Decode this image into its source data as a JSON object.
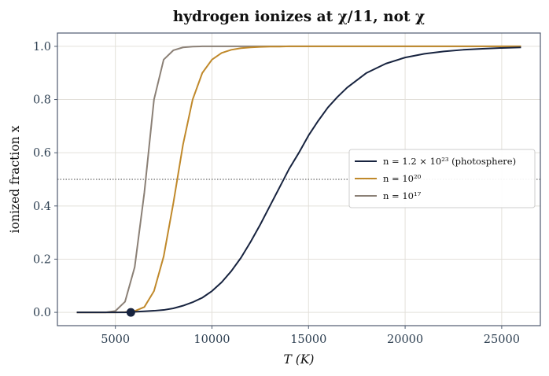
{
  "chart_data": {
    "type": "line",
    "title": "hydrogen ionizes at χ/11, not χ",
    "xlabel": "T (K)",
    "ylabel": "ionized fraction x",
    "xlim": [
      2000,
      27000
    ],
    "ylim": [
      -0.05,
      1.05
    ],
    "xticks": [
      5000,
      10000,
      15000,
      20000,
      25000
    ],
    "yticks": [
      0.0,
      0.2,
      0.4,
      0.6,
      0.8,
      1.0
    ],
    "grid": true,
    "legend_position": "center-right",
    "reference_line": {
      "y": 0.5,
      "style": "dotted",
      "color": "#444444"
    },
    "marker": {
      "x": 5800,
      "y": 0.0,
      "color": "#17233f"
    },
    "x": [
      3000,
      3500,
      4000,
      4500,
      5000,
      5500,
      6000,
      6500,
      7000,
      7500,
      8000,
      8500,
      9000,
      9500,
      10000,
      10500,
      11000,
      11500,
      12000,
      12500,
      13000,
      13500,
      14000,
      14500,
      15000,
      15500,
      16000,
      16500,
      17000,
      18000,
      19000,
      20000,
      21000,
      22000,
      23000,
      24000,
      25000,
      26000
    ],
    "series": [
      {
        "name": "n = 1.2 × 10²³ (photosphere)",
        "color": "#17233f",
        "values": [
          0.0,
          0.0,
          0.0,
          0.0,
          0.0,
          0.0,
          0.002,
          0.004,
          0.006,
          0.009,
          0.015,
          0.025,
          0.038,
          0.055,
          0.08,
          0.113,
          0.155,
          0.205,
          0.265,
          0.33,
          0.4,
          0.47,
          0.54,
          0.6,
          0.665,
          0.72,
          0.77,
          0.81,
          0.845,
          0.9,
          0.935,
          0.958,
          0.972,
          0.981,
          0.987,
          0.991,
          0.994,
          0.996
        ]
      },
      {
        "name": "n = 10²⁰",
        "color": "#c0892b",
        "values": [
          0.0,
          0.0,
          0.0,
          0.0,
          0.0,
          0.001,
          0.005,
          0.02,
          0.08,
          0.21,
          0.41,
          0.63,
          0.8,
          0.9,
          0.95,
          0.975,
          0.987,
          0.993,
          0.996,
          0.998,
          0.999,
          0.999,
          1.0,
          1.0,
          1.0,
          1.0,
          1.0,
          1.0,
          1.0,
          1.0,
          1.0,
          1.0,
          1.0,
          1.0,
          1.0,
          1.0,
          1.0,
          1.0
        ]
      },
      {
        "name": "n = 10¹⁷",
        "color": "#8b8076",
        "values": [
          0.0,
          0.0,
          0.0,
          0.0,
          0.005,
          0.04,
          0.17,
          0.45,
          0.8,
          0.95,
          0.985,
          0.996,
          0.999,
          1.0,
          1.0,
          1.0,
          1.0,
          1.0,
          1.0,
          1.0,
          1.0,
          1.0,
          1.0,
          1.0,
          1.0,
          1.0,
          1.0,
          1.0,
          1.0,
          1.0,
          1.0,
          1.0,
          1.0,
          1.0,
          1.0,
          1.0,
          1.0,
          1.0
        ]
      }
    ]
  }
}
